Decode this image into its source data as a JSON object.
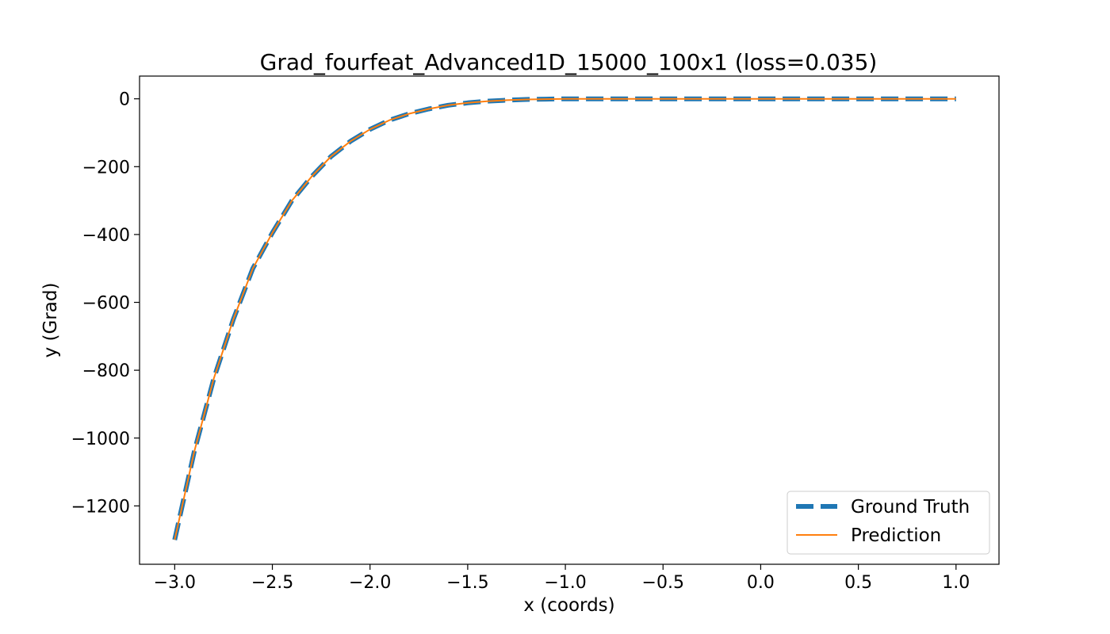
{
  "chart_data": {
    "type": "line",
    "title": "Grad_fourfeat_Advanced1D_15000_100x1 (loss=0.035)",
    "xlabel": "x (coords)",
    "ylabel": "y (Grad)",
    "xlim": [
      -3.18,
      1.22
    ],
    "ylim": [
      -1372,
      67
    ],
    "xticks": [
      -3.0,
      -2.5,
      -2.0,
      -1.5,
      -1.0,
      -0.5,
      0.0,
      0.5,
      1.0
    ],
    "xtick_labels": [
      "−3.0",
      "−2.5",
      "−2.0",
      "−1.5",
      "−1.0",
      "−0.5",
      "0.0",
      "0.5",
      "1.0"
    ],
    "yticks": [
      0,
      -200,
      -400,
      -600,
      -800,
      -1000,
      -1200
    ],
    "ytick_labels": [
      "0",
      "−200",
      "−400",
      "−600",
      "−800",
      "−1000",
      "−1200"
    ],
    "grid": false,
    "legend_position": "lower-right",
    "series": [
      {
        "name": "Ground Truth",
        "color": "#1f77b4",
        "style": "dashed",
        "x": [
          -3.0,
          -2.9,
          -2.8,
          -2.7,
          -2.6,
          -2.5,
          -2.4,
          -2.3,
          -2.2,
          -2.1,
          -2.0,
          -1.9,
          -1.8,
          -1.7,
          -1.6,
          -1.5,
          -1.4,
          -1.3,
          -1.2,
          -1.1,
          -1.0,
          -0.9,
          -0.8,
          -0.6,
          -0.4,
          -0.2,
          0.0,
          0.2,
          0.4,
          0.6,
          0.8,
          1.0
        ],
        "y": [
          -1300,
          -1040,
          -825,
          -650,
          -500,
          -395,
          -300,
          -230,
          -170,
          -125,
          -90,
          -63,
          -44,
          -30,
          -19,
          -12,
          -7,
          -4,
          -2,
          -1,
          0,
          0,
          0,
          0,
          0,
          0,
          0,
          0,
          0,
          0,
          0,
          0
        ]
      },
      {
        "name": "Prediction",
        "color": "#ff7f0e",
        "style": "solid",
        "x": [
          -3.0,
          -2.9,
          -2.8,
          -2.7,
          -2.6,
          -2.5,
          -2.4,
          -2.3,
          -2.2,
          -2.1,
          -2.0,
          -1.9,
          -1.8,
          -1.7,
          -1.6,
          -1.5,
          -1.4,
          -1.3,
          -1.2,
          -1.1,
          -1.0,
          -0.9,
          -0.8,
          -0.6,
          -0.4,
          -0.2,
          0.0,
          0.2,
          0.4,
          0.6,
          0.8,
          1.0
        ],
        "y": [
          -1300,
          -1040,
          -825,
          -650,
          -500,
          -395,
          -300,
          -230,
          -170,
          -125,
          -90,
          -63,
          -44,
          -30,
          -19,
          -12,
          -7,
          -4,
          -2,
          -1,
          0,
          0,
          0,
          0,
          0,
          0,
          0,
          0,
          0,
          0,
          0,
          0
        ]
      }
    ]
  }
}
